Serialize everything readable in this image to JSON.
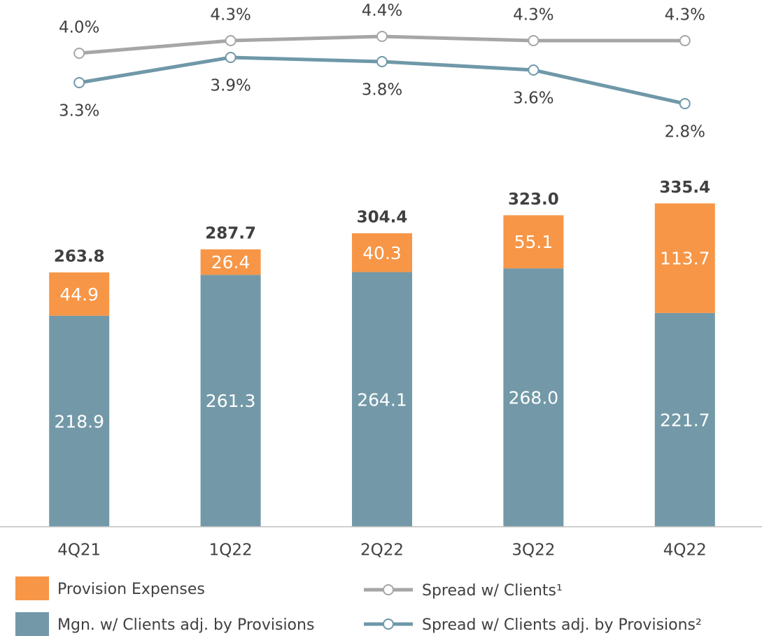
{
  "chart_data": {
    "type": "bar",
    "stacked": true,
    "categories": [
      "4Q21",
      "1Q22",
      "2Q22",
      "3Q22",
      "4Q22"
    ],
    "series": [
      {
        "name": "Mgn. w/ Clients adj. by Provisions",
        "type": "bar",
        "color": "#7399a8",
        "values": [
          218.9,
          261.3,
          264.1,
          268.0,
          221.7
        ],
        "value_labels": [
          "218.9",
          "261.3",
          "264.1",
          "268.0",
          "221.7"
        ]
      },
      {
        "name": "Provision Expenses",
        "type": "bar",
        "color": "#f79646",
        "values": [
          44.9,
          26.4,
          40.3,
          55.1,
          113.7
        ],
        "value_labels": [
          "44.9",
          "26.4",
          "40.3",
          "55.1",
          "113.7"
        ]
      },
      {
        "name": "Spread w/ Clients¹",
        "type": "line",
        "axis": "y2",
        "color": "#a6a6a6",
        "values": [
          4.0,
          4.3,
          4.4,
          4.3,
          4.3
        ],
        "value_labels": [
          "4.0%",
          "4.3%",
          "4.4%",
          "4.3%",
          "4.3%"
        ]
      },
      {
        "name": "Spread w/ Clients adj. by Provisions²",
        "type": "line",
        "axis": "y2",
        "color": "#6f98a8",
        "values": [
          3.3,
          3.9,
          3.8,
          3.6,
          2.8
        ],
        "value_labels": [
          "3.3%",
          "3.9%",
          "3.8%",
          "3.6%",
          "2.8%"
        ]
      }
    ],
    "totals": {
      "values": [
        263.8,
        287.7,
        304.4,
        323.0,
        335.4
      ],
      "value_labels": [
        "263.8",
        "287.7",
        "304.4",
        "323.0",
        "335.4"
      ]
    },
    "ylim": [
      0,
      380
    ],
    "y2lim": [
      2.0,
      5.2
    ]
  }
}
